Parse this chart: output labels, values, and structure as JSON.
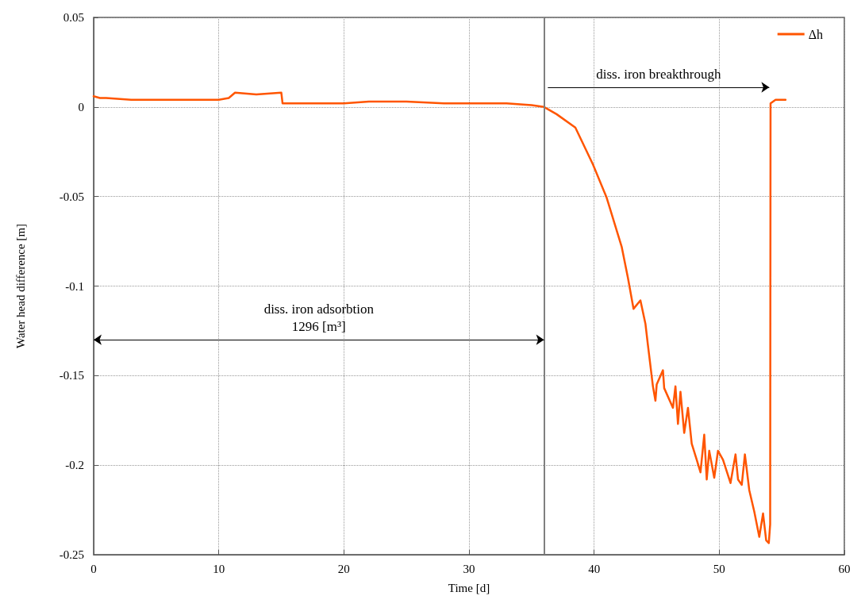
{
  "chart_data": {
    "type": "line",
    "xlabel": "Time [d]",
    "ylabel": "Water head difference [m]",
    "xlim": [
      0,
      60
    ],
    "xticks": [
      0,
      10,
      20,
      30,
      40,
      50,
      60
    ],
    "ylim": [
      -0.25,
      0.05
    ],
    "yticks": [
      -0.25,
      -0.2,
      -0.15,
      -0.1,
      -0.05,
      0,
      0.05
    ],
    "grid": true,
    "legend": "top right",
    "marker": "none",
    "line_style": "solid",
    "ref_lines": [
      {
        "axis": "x",
        "value": 36,
        "color": "#808080"
      }
    ],
    "annotations": [
      "diss. iron adsorbtion\n1296 [m³]",
      "diss. iron breakthrough"
    ],
    "series": [
      {
        "name": "Δh",
        "color": "#ff5500",
        "x": [
          0,
          0.5,
          1,
          3,
          5,
          8,
          10,
          10.8,
          11.3,
          13,
          15,
          15.1,
          17,
          20,
          22,
          25,
          28,
          30,
          33,
          35,
          36,
          37,
          38.5,
          39.9,
          41,
          42.2,
          42.7,
          43.15,
          43.7,
          44.1,
          44.3,
          44.7,
          44.9,
          45,
          45.5,
          45.6,
          46.3,
          46.5,
          46.7,
          46.9,
          47.2,
          47.5,
          47.8,
          48.2,
          48.5,
          48.8,
          49,
          49.2,
          49.6,
          49.9,
          50.3,
          50.9,
          51.3,
          51.5,
          51.8,
          52.05,
          52.4,
          52.8,
          53.2,
          53.5,
          53.75,
          53.96,
          54.07,
          54.1,
          54.5,
          55.3
        ],
        "values": [
          0.006,
          0.005,
          0.005,
          0.004,
          0.004,
          0.004,
          0.004,
          0.005,
          0.008,
          0.007,
          0.008,
          0.002,
          0.002,
          0.002,
          0.003,
          0.003,
          0.002,
          0.002,
          0.002,
          0.001,
          0,
          -0.004,
          -0.0115,
          -0.032,
          -0.0506,
          -0.078,
          -0.0954,
          -0.1127,
          -0.108,
          -0.121,
          -0.133,
          -0.156,
          -0.164,
          -0.155,
          -0.147,
          -0.157,
          -0.168,
          -0.156,
          -0.177,
          -0.159,
          -0.182,
          -0.168,
          -0.188,
          -0.197,
          -0.204,
          -0.183,
          -0.208,
          -0.192,
          -0.207,
          -0.192,
          -0.197,
          -0.21,
          -0.194,
          -0.208,
          -0.211,
          -0.194,
          -0.214,
          -0.226,
          -0.24,
          -0.227,
          -0.242,
          -0.2435,
          -0.233,
          0.002,
          0.004,
          0.004
        ]
      }
    ]
  }
}
